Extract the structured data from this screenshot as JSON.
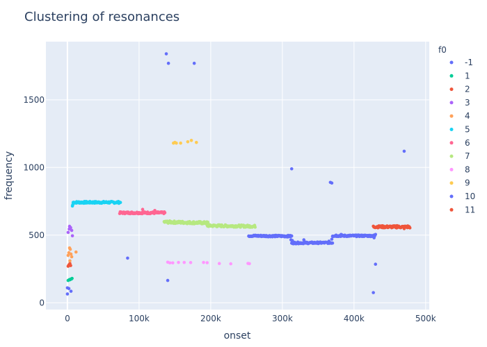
{
  "chart_data": {
    "type": "scatter",
    "title": "Clustering of resonances",
    "xlabel": "onset",
    "ylabel": "frequency",
    "legend_title": "f0",
    "legend_position": "right",
    "grid": true,
    "xlim": [
      -30000,
      505000
    ],
    "ylim": [
      -50,
      1930
    ],
    "x_ticks": [
      0,
      100000,
      200000,
      300000,
      400000,
      500000
    ],
    "x_tick_labels": [
      "0",
      "100k",
      "200k",
      "300k",
      "400k",
      "500k"
    ],
    "y_ticks": [
      0,
      500,
      1000,
      1500
    ],
    "y_tick_labels": [
      "0",
      "500",
      "1000",
      "1500"
    ],
    "series": [
      {
        "name": "-1",
        "color": "#636efa",
        "segments": [],
        "points": [
          [
            0,
            65
          ],
          [
            0,
            110
          ],
          [
            2000,
            105
          ],
          [
            5000,
            85
          ],
          [
            84000,
            330
          ],
          [
            140000,
            165
          ],
          [
            138000,
            1840
          ],
          [
            141000,
            1770
          ],
          [
            177000,
            1770
          ],
          [
            313000,
            990
          ],
          [
            367000,
            890
          ],
          [
            369000,
            885
          ],
          [
            427000,
            75
          ],
          [
            430000,
            285
          ],
          [
            470000,
            1120
          ]
        ]
      },
      {
        "name": "1",
        "color": "#00cc96",
        "segments": [],
        "points": [
          [
            1000,
            165
          ],
          [
            2500,
            170
          ],
          [
            3500,
            170
          ],
          [
            4500,
            175
          ],
          [
            5500,
            175
          ],
          [
            6500,
            180
          ]
        ]
      },
      {
        "name": "2",
        "color": "#ef553b",
        "segments": [],
        "points": [
          [
            1000,
            270
          ],
          [
            2000,
            280
          ],
          [
            3500,
            290
          ],
          [
            4500,
            275
          ]
        ]
      },
      {
        "name": "3",
        "color": "#ab63fa",
        "segments": [],
        "points": [
          [
            1000,
            520
          ],
          [
            2500,
            545
          ],
          [
            3000,
            565
          ],
          [
            4500,
            555
          ],
          [
            6000,
            535
          ],
          [
            7000,
            495
          ]
        ]
      },
      {
        "name": "4",
        "color": "#ffa15a",
        "segments": [],
        "points": [
          [
            1000,
            350
          ],
          [
            2000,
            370
          ],
          [
            3000,
            405
          ],
          [
            4000,
            395
          ],
          [
            5000,
            360
          ],
          [
            6000,
            340
          ],
          [
            12000,
            375
          ],
          [
            3500,
            310
          ]
        ]
      },
      {
        "name": "5",
        "color": "#19d3f3",
        "segments": [
          {
            "x0": 8000,
            "x1": 74000,
            "y0": 742,
            "y1": 742,
            "spread": 7
          }
        ],
        "points": [
          [
            7000,
            715
          ],
          [
            7500,
            725
          ]
        ]
      },
      {
        "name": "6",
        "color": "#ff6692",
        "segments": [
          {
            "x0": 73000,
            "x1": 136000,
            "y0": 665,
            "y1": 665,
            "spread": 7
          }
        ],
        "points": [
          [
            105000,
            690
          ],
          [
            122000,
            682
          ]
        ]
      },
      {
        "name": "7",
        "color": "#b6e880",
        "segments": [
          {
            "x0": 135000,
            "x1": 196000,
            "y0": 597,
            "y1": 590,
            "spread": 9
          },
          {
            "x0": 195000,
            "x1": 262000,
            "y0": 570,
            "y1": 565,
            "spread": 8
          }
        ],
        "points": []
      },
      {
        "name": "8",
        "color": "#ff97ff",
        "segments": [],
        "points": [
          [
            140000,
            300
          ],
          [
            143000,
            295
          ],
          [
            147000,
            295
          ],
          [
            155000,
            298
          ],
          [
            163000,
            298
          ],
          [
            172000,
            297
          ],
          [
            190000,
            298
          ],
          [
            195000,
            296
          ],
          [
            212000,
            290
          ],
          [
            228000,
            288
          ],
          [
            252000,
            291
          ],
          [
            254000,
            289
          ]
        ]
      },
      {
        "name": "9",
        "color": "#fecb52",
        "segments": [],
        "points": [
          [
            148000,
            1180
          ],
          [
            150000,
            1185
          ],
          [
            152000,
            1180
          ],
          [
            158000,
            1180
          ],
          [
            168000,
            1190
          ],
          [
            173000,
            1200
          ],
          [
            180000,
            1185
          ]
        ]
      },
      {
        "name": "10",
        "color": "#636efa",
        "segments": [
          {
            "x0": 253000,
            "x1": 313000,
            "y0": 495,
            "y1": 492,
            "spread": 6
          },
          {
            "x0": 313000,
            "x1": 370000,
            "y0": 442,
            "y1": 444,
            "spread": 6
          },
          {
            "x0": 370000,
            "x1": 429000,
            "y0": 495,
            "y1": 495,
            "spread": 6
          }
        ],
        "points": [
          [
            312000,
            465
          ],
          [
            314000,
            460
          ],
          [
            316000,
            445
          ],
          [
            330000,
            465
          ],
          [
            345000,
            440
          ],
          [
            365000,
            455
          ],
          [
            369000,
            470
          ],
          [
            375000,
            500
          ],
          [
            382000,
            505
          ],
          [
            428000,
            480
          ],
          [
            430000,
            505
          ]
        ]
      },
      {
        "name": "11",
        "color": "#ef553b",
        "segments": [
          {
            "x0": 427000,
            "x1": 478000,
            "y0": 562,
            "y1": 560,
            "spread": 8
          }
        ],
        "points": [
          [
            460000,
            570
          ],
          [
            470000,
            548
          ],
          [
            475000,
            568
          ]
        ]
      }
    ]
  }
}
